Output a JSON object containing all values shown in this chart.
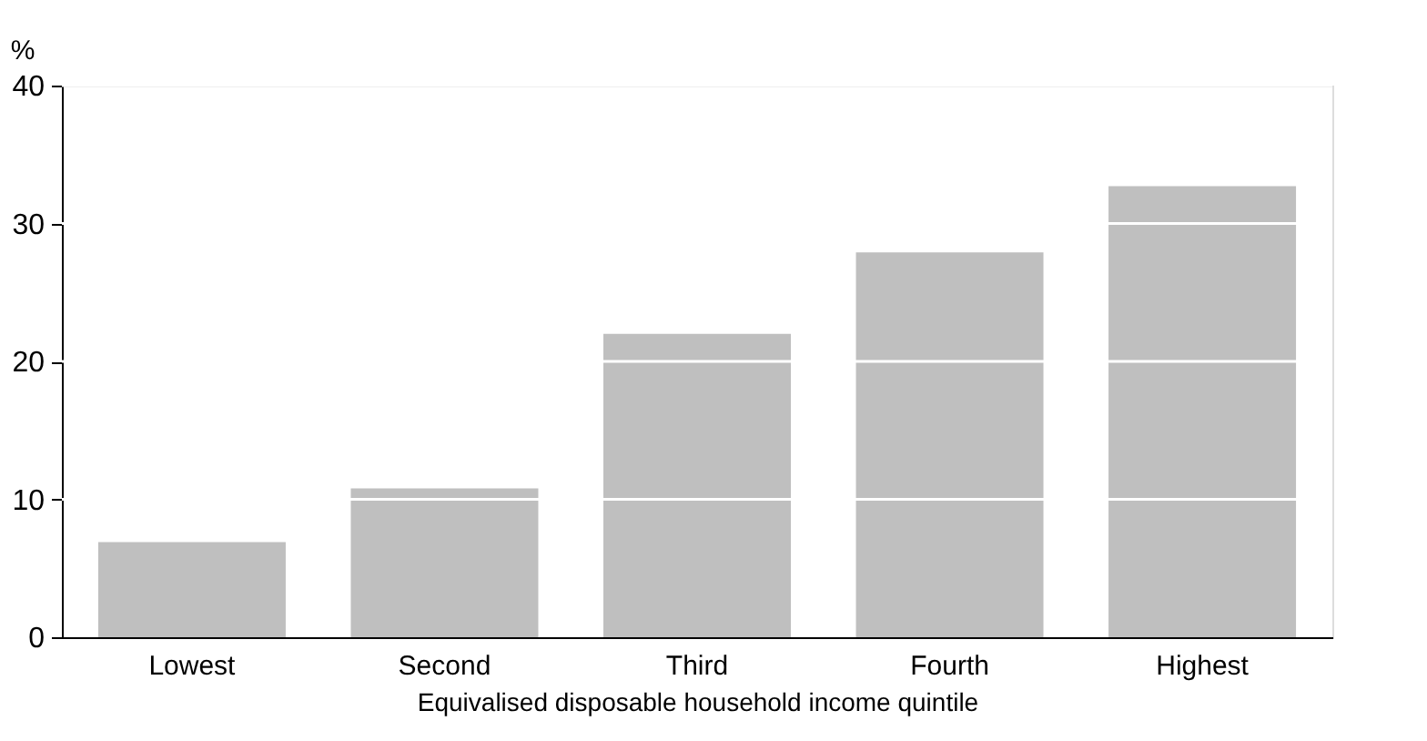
{
  "chart_data": {
    "type": "bar",
    "xlabel": "Equivalised disposable household income quintile",
    "ylabel": "%",
    "categories": [
      "Lowest",
      "Second",
      "Third",
      "Fourth",
      "Highest"
    ],
    "values": [
      6.9,
      10.8,
      22.0,
      27.9,
      32.7
    ],
    "color": "#bfbfbf",
    "ylim": [
      0,
      40
    ],
    "yticks": [
      0,
      10,
      20,
      30,
      40
    ],
    "grid": "y"
  }
}
